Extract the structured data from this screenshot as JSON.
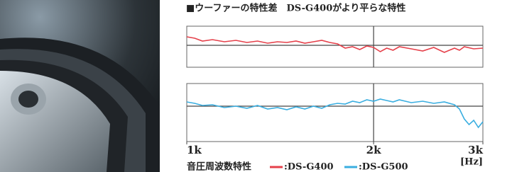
{
  "chart_data": [
    {
      "type": "line",
      "title": "■ウーファーの特性差　DS-G400がより平らな特性",
      "legend_title": "音圧周波数特性",
      "x": [
        1000,
        1030,
        1060,
        1100,
        1150,
        1200,
        1250,
        1300,
        1350,
        1400,
        1450,
        1500,
        1550,
        1600,
        1650,
        1700,
        1750,
        1800,
        1850,
        1900,
        1950,
        2000,
        2050,
        2100,
        2150,
        2200,
        2300,
        2400,
        2500,
        2600,
        2700,
        2750,
        2800,
        2900,
        3000
      ],
      "series": [
        {
          "name": ":DS-G400",
          "color": "#e5404a",
          "values": [
            12,
            10,
            6,
            8,
            5,
            7,
            4,
            6,
            3,
            5,
            4,
            6,
            3,
            5,
            7,
            4,
            2,
            -4,
            -2,
            -6,
            -1,
            -3,
            -9,
            -4,
            -7,
            -2,
            -5,
            -8,
            -3,
            -10,
            -4,
            -7,
            -2,
            -5,
            -4
          ]
        }
      ],
      "xlim": [
        1000,
        3000
      ],
      "xlog": true,
      "ylim": [
        -31,
        27
      ],
      "ref_x": 2000,
      "ref_y": 0
    },
    {
      "type": "line",
      "x_unit_label": "[Hz]",
      "x": [
        1000,
        1030,
        1060,
        1100,
        1150,
        1200,
        1250,
        1300,
        1350,
        1400,
        1450,
        1500,
        1550,
        1600,
        1650,
        1700,
        1750,
        1800,
        1850,
        1900,
        1950,
        2000,
        2050,
        2100,
        2150,
        2200,
        2300,
        2400,
        2500,
        2600,
        2700,
        2750,
        2800,
        2850,
        2900,
        2950,
        3000
      ],
      "series": [
        {
          "name": ":DS-G500",
          "color": "#3aaee0",
          "values": [
            6,
            4,
            1,
            2,
            -2,
            0,
            -3,
            1,
            -4,
            -2,
            -5,
            -1,
            -4,
            0,
            -3,
            2,
            4,
            3,
            7,
            5,
            9,
            7,
            10,
            8,
            6,
            9,
            5,
            7,
            4,
            6,
            2,
            -4,
            -18,
            -26,
            -20,
            -30,
            -22
          ]
        }
      ],
      "xlim": [
        1000,
        3000
      ],
      "xlog": true,
      "ylim": [
        -50,
        32
      ],
      "ref_x": 2000,
      "ref_y": 0,
      "xticks": [
        {
          "value": 1000,
          "label": "1k"
        },
        {
          "value": 2000,
          "label": "2k"
        },
        {
          "value": 3000,
          "label": "3k"
        }
      ]
    }
  ]
}
